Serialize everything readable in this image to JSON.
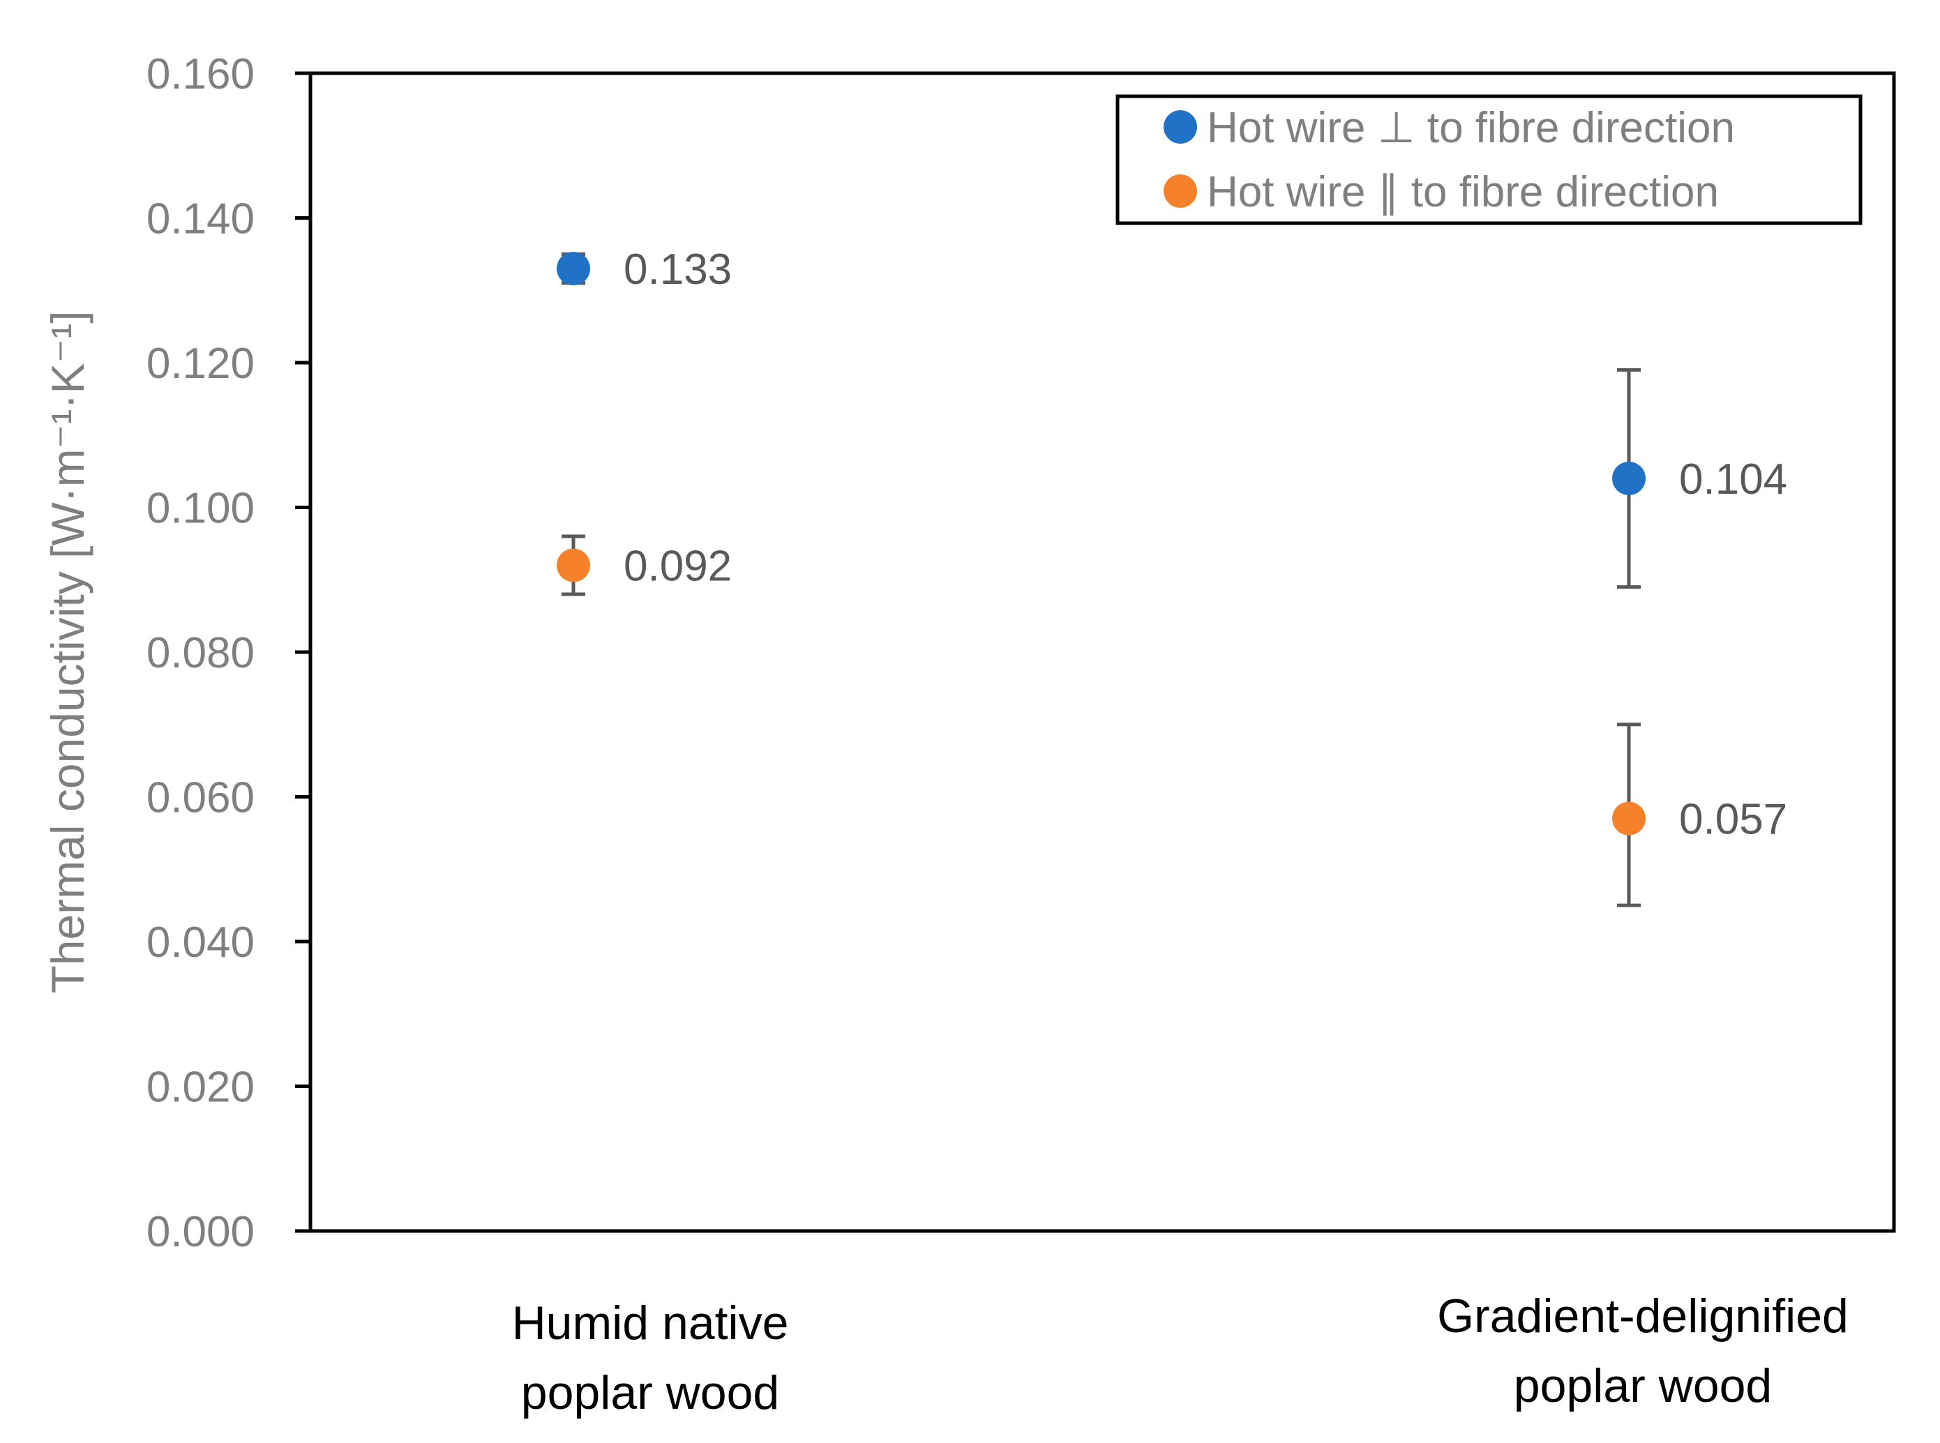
{
  "chart_data": {
    "type": "scatter",
    "ylabel": "Thermal conductivity [W·m⁻¹·K⁻¹]",
    "ylim": [
      0,
      0.16
    ],
    "yticks": [
      "0.000",
      "0.020",
      "0.040",
      "0.060",
      "0.080",
      "0.100",
      "0.120",
      "0.140",
      "0.160"
    ],
    "categories": [
      [
        "Humid native",
        "poplar wood"
      ],
      [
        "Gradient-delignified",
        "poplar wood"
      ]
    ],
    "legend_position": "top-right",
    "series": [
      {
        "name": "Hot wire ⊥ to fibre direction",
        "color": "#1f72c6",
        "values": [
          0.133,
          0.104
        ],
        "error_low": [
          0.131,
          0.089
        ],
        "error_high": [
          0.135,
          0.119
        ],
        "labels": [
          "0.133",
          "0.104"
        ]
      },
      {
        "name": "Hot wire ∥ to fibre direction",
        "color": "#f5822a",
        "values": [
          0.092,
          0.057
        ],
        "error_low": [
          0.088,
          0.045
        ],
        "error_high": [
          0.096,
          0.07
        ],
        "labels": [
          "0.092",
          "0.057"
        ]
      }
    ]
  }
}
